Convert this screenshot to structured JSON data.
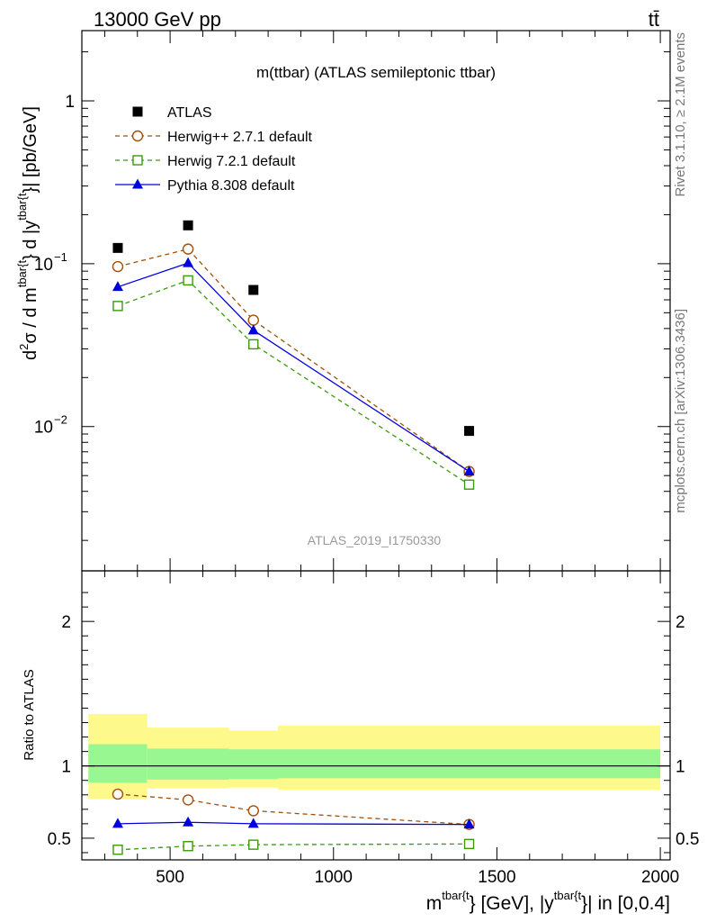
{
  "header": {
    "left_label": "13000 GeV pp",
    "right_label": "tt̄"
  },
  "side_labels": {
    "rivet": "Rivet 3.1.10, ≥ 2.1M events",
    "mcplots": "mcplots.cern.ch [arXiv:1306.3436]"
  },
  "chart_data": [
    {
      "type": "scatter",
      "panel": "main",
      "title": "m(ttbar) (ATLAS semileptonic ttbar)",
      "analysis_label": "ATLAS_2019_I1750330",
      "ylabel": {
        "pre": "d",
        "sup1": "2",
        "mid1": "σ / d m",
        "sup2": "tbar{t",
        "mid2": "} d |y",
        "sup3": "tbar{t",
        "post": "}| [pb/GeV]"
      },
      "y_scale": "log",
      "ylim": [
        0.0013,
        2.7
      ],
      "xlim": [
        230,
        2030
      ],
      "grid": false,
      "legend_position": "top-left",
      "yticks": [
        {
          "value": 1,
          "label": "1"
        },
        {
          "value": 0.1,
          "base": "10",
          "exp": "−1"
        },
        {
          "value": 0.01,
          "base": "10",
          "exp": "−2"
        }
      ],
      "series": [
        {
          "name": "ATLAS",
          "marker": "filled-square",
          "color": "#000000",
          "x": [
            340,
            555,
            755,
            1415
          ],
          "y": [
            0.125,
            0.172,
            0.069,
            0.0094
          ]
        },
        {
          "name": "Herwig++ 2.7.1 default",
          "marker": "open-circle",
          "line": "dashed",
          "color": "#a0500a",
          "x": [
            340,
            555,
            755,
            1415
          ],
          "y": [
            0.096,
            0.123,
            0.045,
            0.0053
          ]
        },
        {
          "name": "Herwig 7.2.1 default",
          "marker": "open-square",
          "line": "dashed",
          "color": "#3a9a0a",
          "x": [
            340,
            555,
            755,
            1415
          ],
          "y": [
            0.055,
            0.079,
            0.032,
            0.0044
          ]
        },
        {
          "name": "Pythia 8.308 default",
          "marker": "filled-triangle",
          "line": "solid",
          "color": "#0000dd",
          "x": [
            340,
            555,
            755,
            1415
          ],
          "y": [
            0.072,
            0.101,
            0.039,
            0.0053
          ]
        }
      ]
    },
    {
      "type": "line",
      "panel": "ratio",
      "ylabel": "Ratio to ATLAS",
      "xlabel": {
        "pre": "m",
        "sup1": "tbar{t",
        "mid": "} [GeV], |y",
        "sup2": "tbar{t",
        "post": "}| in [0,0.4]"
      },
      "ylim": [
        0.35,
        2.35
      ],
      "xlim": [
        230,
        2030
      ],
      "yticks": [
        {
          "value": 0.5,
          "label": "0.5"
        },
        {
          "value": 1,
          "label": "1"
        },
        {
          "value": 2,
          "label": "2"
        }
      ],
      "xticks": [
        {
          "value": 500,
          "label": "500"
        },
        {
          "value": 1000,
          "label": "1000"
        },
        {
          "value": 1500,
          "label": "1500"
        },
        {
          "value": 2000,
          "label": "2000"
        }
      ],
      "bands": [
        {
          "x0": 250,
          "x1": 430,
          "stat": [
            0.885,
            1.15
          ],
          "total": [
            0.77,
            1.36
          ]
        },
        {
          "x0": 430,
          "x1": 680,
          "stat": [
            0.905,
            1.12
          ],
          "total": [
            0.845,
            1.265
          ]
        },
        {
          "x0": 680,
          "x1": 830,
          "stat": [
            0.91,
            1.115
          ],
          "total": [
            0.85,
            1.245
          ]
        },
        {
          "x0": 830,
          "x1": 2000,
          "stat": [
            0.915,
            1.115
          ],
          "total": [
            0.835,
            1.28
          ]
        }
      ],
      "band_colors": {
        "stat": "#99f792",
        "total": "#fdf98a"
      },
      "series": [
        {
          "name": "Herwig++ 2.7.1 default",
          "marker": "open-circle",
          "line": "dashed",
          "color": "#a0500a",
          "x": [
            340,
            555,
            755,
            1415
          ],
          "y": [
            0.805,
            0.765,
            0.69,
            0.595
          ]
        },
        {
          "name": "Herwig 7.2.1 default",
          "marker": "open-square",
          "line": "dashed",
          "color": "#3a9a0a",
          "x": [
            340,
            555,
            755,
            1415
          ],
          "y": [
            0.42,
            0.445,
            0.455,
            0.46
          ]
        },
        {
          "name": "Pythia 8.308 default",
          "marker": "filled-triangle",
          "line": "solid",
          "color": "#0000dd",
          "x": [
            340,
            555,
            755,
            1415
          ],
          "y": [
            0.6,
            0.61,
            0.6,
            0.595
          ]
        }
      ]
    }
  ]
}
